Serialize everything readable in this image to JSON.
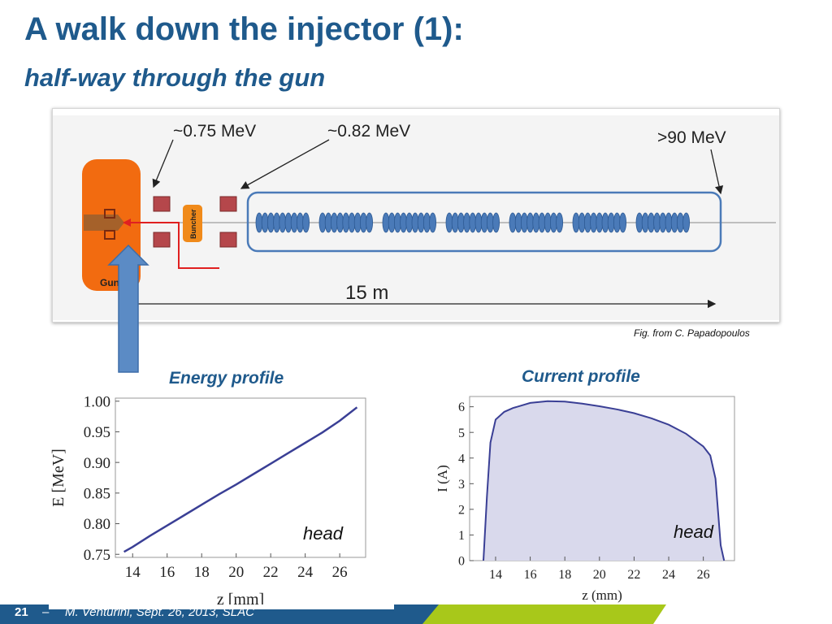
{
  "slide": {
    "title": "A walk down the injector (1):",
    "subtitle": "half-way through the gun",
    "figure_credit": "Fig. from C. Papadopoulos",
    "page_number": "21",
    "footer": "M. Venturini, Sept. 26, 2013, SLAC"
  },
  "diagram": {
    "label_075": "~0.75 MeV",
    "label_082": "~0.82 MeV",
    "label_90": ">90 MeV",
    "gun_label": "Gun",
    "buncher_label": "Buncher",
    "length_label": "15 m",
    "colors": {
      "gun": "#f26b10",
      "linac": "#4a7ab8",
      "magnet": "#b5474b",
      "arrow": "#5b8bc5"
    }
  },
  "chart_data": [
    {
      "type": "line",
      "title": "Energy profile",
      "xlabel": "z [mm]",
      "ylabel": "E [MeV]",
      "xlim": [
        13,
        27.5
      ],
      "ylim": [
        0.745,
        1.005
      ],
      "xticks": [
        "14",
        "16",
        "18",
        "20",
        "22",
        "24",
        "26"
      ],
      "yticks": [
        "1.00",
        "0.95",
        "0.90",
        "0.85",
        "0.80",
        "0.75"
      ],
      "annotation": "head",
      "x": [
        13.5,
        14,
        15,
        16,
        17,
        18,
        19,
        20,
        21,
        22,
        23,
        24,
        25,
        26,
        27
      ],
      "y": [
        0.754,
        0.762,
        0.78,
        0.797,
        0.814,
        0.831,
        0.848,
        0.864,
        0.881,
        0.898,
        0.915,
        0.932,
        0.949,
        0.968,
        0.99
      ],
      "color": "#3a3f95"
    },
    {
      "type": "area",
      "title": "Current profile",
      "xlabel": "z (mm)",
      "ylabel": "I (A)",
      "xlim": [
        12.5,
        27.8
      ],
      "ylim": [
        0,
        6.4
      ],
      "xticks": [
        "14",
        "16",
        "18",
        "20",
        "22",
        "24",
        "26"
      ],
      "yticks": [
        "0",
        "1",
        "2",
        "3",
        "4",
        "5",
        "6"
      ],
      "annotation": "head",
      "x": [
        13.3,
        13.5,
        13.7,
        14.0,
        14.5,
        15.0,
        16.0,
        17.0,
        18.0,
        19.0,
        20.0,
        21.0,
        22.0,
        23.0,
        24.0,
        25.0,
        26.0,
        26.4,
        26.7,
        27.0,
        27.2
      ],
      "y": [
        0,
        2.5,
        4.6,
        5.5,
        5.8,
        5.95,
        6.15,
        6.22,
        6.2,
        6.12,
        6.02,
        5.9,
        5.75,
        5.55,
        5.3,
        4.95,
        4.45,
        4.1,
        3.2,
        0.6,
        0
      ],
      "color": "#3a3f95",
      "fill": "#d9d9ec"
    }
  ]
}
